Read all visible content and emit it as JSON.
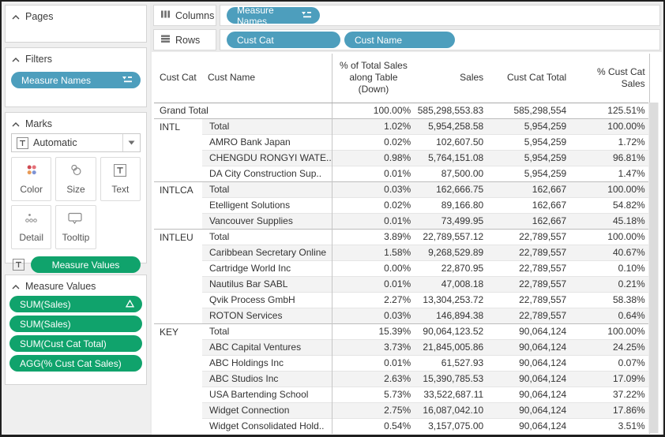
{
  "colors": {
    "pill_blue": "#4d9ebd",
    "pill_green": "#10a36c",
    "band": "#f3f3f3"
  },
  "sidebar": {
    "pages": {
      "title": "Pages"
    },
    "filters": {
      "title": "Filters",
      "pills": [
        {
          "label": "Measure Names",
          "icon": "sort-icon"
        }
      ]
    },
    "marks": {
      "title": "Marks",
      "mark_type": "Automatic",
      "buttons": [
        {
          "label": "Color"
        },
        {
          "label": "Size"
        },
        {
          "label": "Text"
        },
        {
          "label": "Detail"
        },
        {
          "label": "Tooltip"
        }
      ],
      "pill": "Measure Values"
    },
    "measure_values": {
      "title": "Measure Values",
      "pills": [
        {
          "label": "SUM(Sales)",
          "badge": "delta-icon"
        },
        {
          "label": "SUM(Sales)"
        },
        {
          "label": "SUM(Cust Cat Total)"
        },
        {
          "label": "AGG(% Cust Cat Sales)"
        }
      ]
    }
  },
  "shelves": {
    "columns": {
      "label": "Columns",
      "pills": [
        {
          "label": "Measure Names",
          "icon": "sort-icon"
        }
      ]
    },
    "rows": {
      "label": "Rows",
      "pills": [
        {
          "label": "Cust Cat"
        },
        {
          "label": "Cust Name"
        }
      ]
    }
  },
  "table": {
    "headers": [
      "Cust Cat",
      "Cust Name",
      "% of Total Sales\nalong Table\n(Down)",
      "Sales",
      "Cust Cat Total",
      "% Cust Cat\nSales"
    ],
    "grand_total": [
      "Grand Total",
      "100.00%",
      "585,298,553.83",
      "585,298,554",
      "125.51%"
    ],
    "groups": [
      {
        "cat": "INTL",
        "rows": [
          [
            "Total",
            "1.02%",
            "5,954,258.58",
            "5,954,259",
            "100.00%"
          ],
          [
            "AMRO Bank Japan",
            "0.02%",
            "102,607.50",
            "5,954,259",
            "1.72%"
          ],
          [
            "CHENGDU RONGYI WATE..",
            "0.98%",
            "5,764,151.08",
            "5,954,259",
            "96.81%"
          ],
          [
            "DA City Construction Sup..",
            "0.01%",
            "87,500.00",
            "5,954,259",
            "1.47%"
          ]
        ]
      },
      {
        "cat": "INTLCA",
        "rows": [
          [
            "Total",
            "0.03%",
            "162,666.75",
            "162,667",
            "100.00%"
          ],
          [
            "Etelligent Solutions",
            "0.02%",
            "89,166.80",
            "162,667",
            "54.82%"
          ],
          [
            "Vancouver Supplies",
            "0.01%",
            "73,499.95",
            "162,667",
            "45.18%"
          ]
        ]
      },
      {
        "cat": "INTLEU",
        "rows": [
          [
            "Total",
            "3.89%",
            "22,789,557.12",
            "22,789,557",
            "100.00%"
          ],
          [
            "Caribbean Secretary Online",
            "1.58%",
            "9,268,529.89",
            "22,789,557",
            "40.67%"
          ],
          [
            "Cartridge World Inc",
            "0.00%",
            "22,870.95",
            "22,789,557",
            "0.10%"
          ],
          [
            "Nautilus Bar SABL",
            "0.01%",
            "47,008.18",
            "22,789,557",
            "0.21%"
          ],
          [
            "Qvik Process GmbH",
            "2.27%",
            "13,304,253.72",
            "22,789,557",
            "58.38%"
          ],
          [
            "ROTON Services",
            "0.03%",
            "146,894.38",
            "22,789,557",
            "0.64%"
          ]
        ]
      },
      {
        "cat": "KEY",
        "rows": [
          [
            "Total",
            "15.39%",
            "90,064,123.52",
            "90,064,124",
            "100.00%"
          ],
          [
            "ABC Capital Ventures",
            "3.73%",
            "21,845,005.86",
            "90,064,124",
            "24.25%"
          ],
          [
            "ABC Holdings Inc",
            "0.01%",
            "61,527.93",
            "90,064,124",
            "0.07%"
          ],
          [
            "ABC Studios Inc",
            "2.63%",
            "15,390,785.53",
            "90,064,124",
            "17.09%"
          ],
          [
            "USA Bartending School",
            "5.73%",
            "33,522,687.11",
            "90,064,124",
            "37.22%"
          ],
          [
            "Widget Connection",
            "2.75%",
            "16,087,042.10",
            "90,064,124",
            "17.86%"
          ],
          [
            "Widget Consolidated Hold..",
            "0.54%",
            "3,157,075.00",
            "90,064,124",
            "3.51%"
          ]
        ]
      }
    ]
  }
}
